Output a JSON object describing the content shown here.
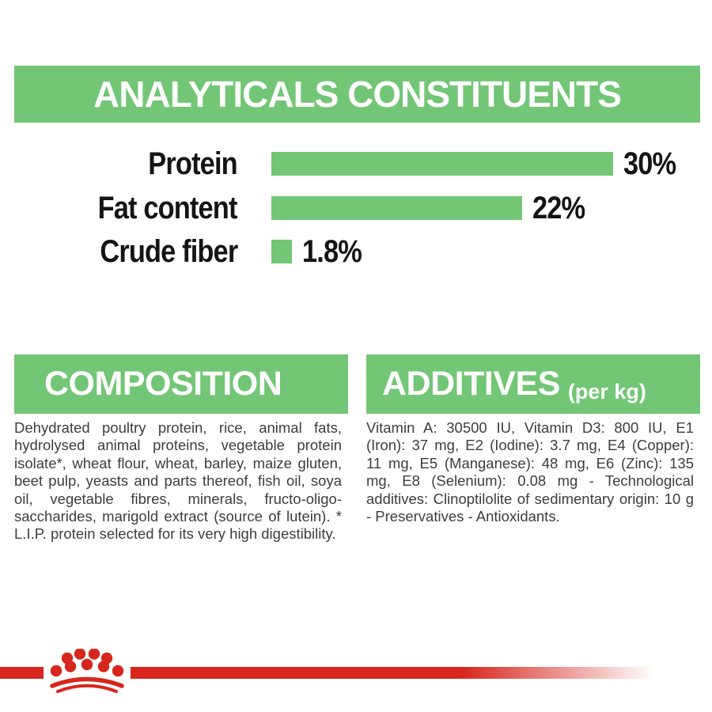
{
  "colors": {
    "green": "#72c675",
    "red": "#d7261d",
    "text_black": "#141414",
    "text_body": "#3d3d3d",
    "white": "#ffffff"
  },
  "header": {
    "title": "ANALYTICALS CONSTITUENTS"
  },
  "chart_data": {
    "type": "bar",
    "orientation": "horizontal",
    "categories": [
      "Protein",
      "Fat content",
      "Crude fiber"
    ],
    "values": [
      30,
      22,
      1.8
    ],
    "value_labels": [
      "30%",
      "22%",
      "1.8%"
    ],
    "unit": "%",
    "xlim": [
      0,
      30
    ],
    "bar_color": "#72c675",
    "grid": false,
    "legend": false
  },
  "composition": {
    "title": "COMPOSITION",
    "body": "Dehydrated poultry protein, rice, animal fats, hydrolysed animal proteins, vegetable protein isolate*, wheat flour, wheat, barley, maize gluten, beet pulp, yeasts and parts thereof, fish oil, soya oil, vegetable fibres, minerals, fructo-oligo-saccharides, marigold extract (source of lutein). * L.I.P. protein selected for its very high digestibility."
  },
  "additives": {
    "title": "ADDITIVES",
    "title_suffix": "(per kg)",
    "body": "Vitamin A: 30500 IU, Vitamin D3: 800 IU, E1 (Iron): 37 mg, E2 (Iodine): 3.7 mg, E4 (Copper): 11 mg, E5 (Manganese): 48 mg, E6 (Zinc): 135 mg, E8 (Selenium): 0.08 mg - Technological additives: Clinoptilolite of sedimentary origin: 10 g - Preservatives - Antioxidants."
  },
  "footer": {
    "logo": "royal-canin-crown-icon"
  }
}
